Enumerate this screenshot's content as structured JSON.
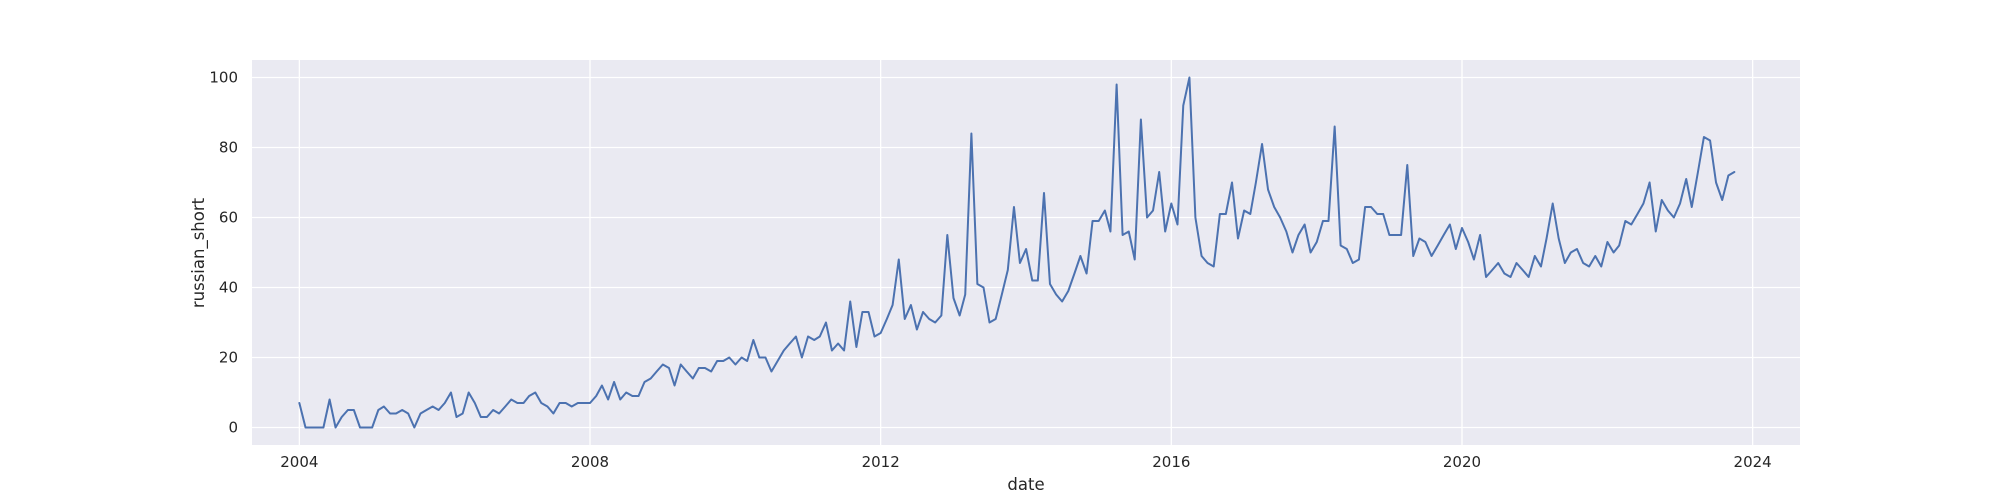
{
  "chart_data": {
    "type": "line",
    "xlabel": "date",
    "ylabel": "russian_short",
    "x_range": [
      "2003-05-08",
      "2024-08-26"
    ],
    "ylim": [
      -5,
      105
    ],
    "x_ticks": [
      "2004",
      "2008",
      "2012",
      "2016",
      "2020",
      "2024"
    ],
    "y_ticks": [
      "0",
      "20",
      "40",
      "60",
      "80",
      "100"
    ],
    "grid": true,
    "legend": "none",
    "colors": {
      "background": "#eaeaf2",
      "grid": "#ffffff",
      "line": "#4c72b0"
    },
    "series": [
      {
        "start": "2004-01",
        "frequency": "monthly",
        "values": [
          7,
          0,
          0,
          0,
          0,
          8,
          0,
          3,
          5,
          5,
          0,
          0,
          0,
          5,
          6,
          4,
          4,
          5,
          4,
          0,
          4,
          5,
          6,
          5,
          7,
          10,
          3,
          4,
          10,
          7,
          3,
          3,
          5,
          4,
          6,
          8,
          7,
          7,
          9,
          10,
          7,
          6,
          4,
          7,
          7,
          6,
          7,
          7,
          7,
          9,
          12,
          8,
          13,
          8,
          10,
          9,
          9,
          13,
          14,
          16,
          18,
          17,
          12,
          18,
          16,
          14,
          17,
          17,
          16,
          19,
          19,
          20,
          18,
          20,
          19,
          25,
          20,
          20,
          16,
          19,
          22,
          24,
          26,
          20,
          26,
          25,
          26,
          30,
          22,
          24,
          22,
          36,
          23,
          33,
          33,
          26,
          27,
          31,
          35,
          48,
          31,
          35,
          28,
          33,
          31,
          30,
          32,
          55,
          37,
          32,
          38,
          84,
          41,
          40,
          30,
          31,
          38,
          45,
          63,
          47,
          51,
          42,
          42,
          67,
          41,
          38,
          36,
          39,
          44,
          49,
          44,
          59,
          59,
          62,
          56,
          98,
          55,
          56,
          48,
          88,
          60,
          62,
          73,
          56,
          64,
          58,
          92,
          100,
          60,
          49,
          47,
          46,
          61,
          61,
          70,
          54,
          62,
          61,
          70,
          81,
          68,
          63,
          60,
          56,
          50,
          55,
          58,
          50,
          53,
          59,
          59,
          86,
          52,
          51,
          47,
          48,
          63,
          63,
          61,
          61,
          55,
          55,
          55,
          75,
          49,
          54,
          53,
          49,
          52,
          55,
          58,
          51,
          57,
          53,
          48,
          55,
          43,
          45,
          47,
          44,
          43,
          47,
          45,
          43,
          49,
          46,
          54,
          64,
          54,
          47,
          50,
          51,
          47,
          46,
          49,
          46,
          53,
          50,
          52,
          59,
          58,
          61,
          64,
          70,
          56,
          65,
          62,
          60,
          64,
          71,
          63,
          73,
          83,
          82,
          70,
          65,
          72,
          73
        ]
      }
    ]
  }
}
